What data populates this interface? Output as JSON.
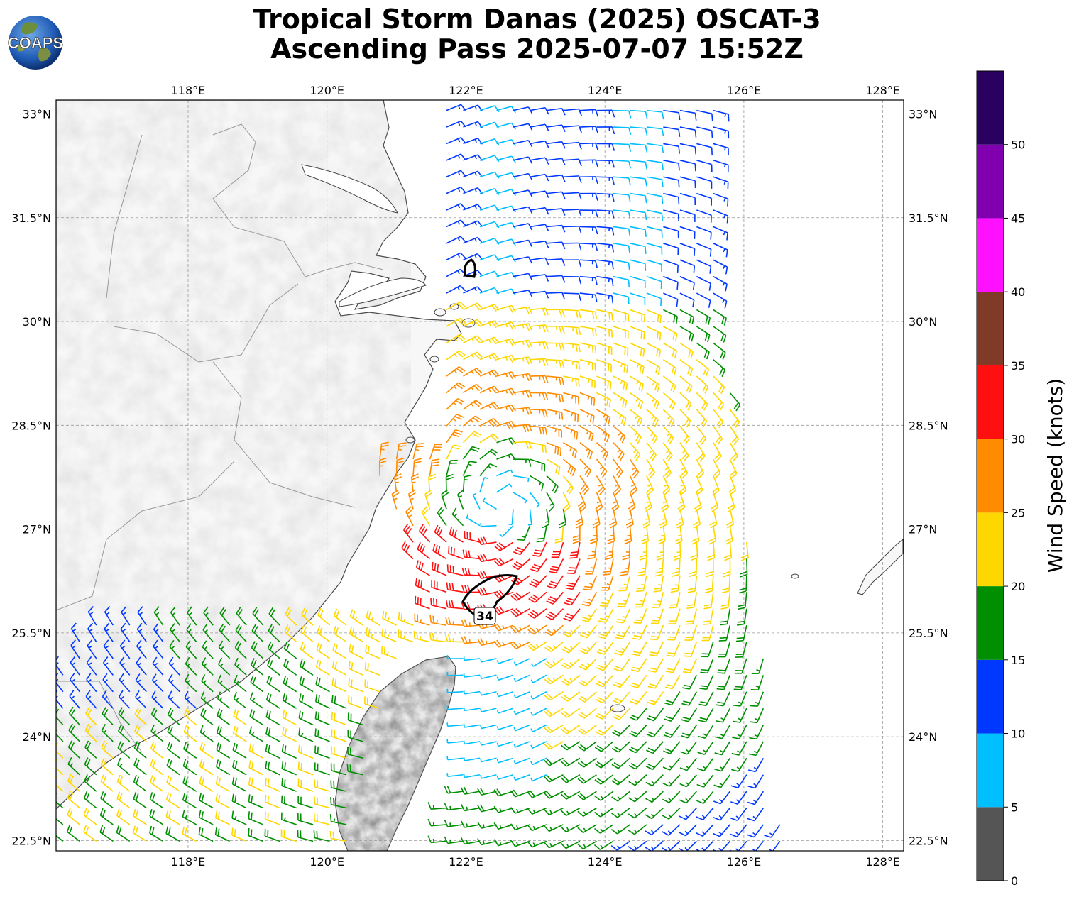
{
  "title": {
    "line1": "Tropical Storm Danas (2025) OSCAT-3",
    "line2": "Ascending Pass 2025-07-07 15:52Z"
  },
  "logo": {
    "text": "COAPS",
    "icon": "globe-logo-icon"
  },
  "map": {
    "lon_range": [
      116.1,
      128.3
    ],
    "lat_range": [
      22.35,
      33.2
    ],
    "lon_ticks": [
      {
        "value": 118,
        "label": "118°E"
      },
      {
        "value": 120,
        "label": "120°E"
      },
      {
        "value": 122,
        "label": "122°E"
      },
      {
        "value": 124,
        "label": "124°E"
      },
      {
        "value": 126,
        "label": "126°E"
      },
      {
        "value": 128,
        "label": "128°E"
      }
    ],
    "lat_ticks": [
      {
        "value": 33,
        "label": "33°N"
      },
      {
        "value": 31.5,
        "label": "31.5°N"
      },
      {
        "value": 30,
        "label": "30°N"
      },
      {
        "value": 28.5,
        "label": "28.5°N"
      },
      {
        "value": 27,
        "label": "27°N"
      },
      {
        "value": 25.5,
        "label": "25.5°N"
      },
      {
        "value": 24,
        "label": "24°N"
      },
      {
        "value": 22.5,
        "label": "22.5°N"
      }
    ],
    "gridlines": true,
    "storm_center": {
      "lon": 122.5,
      "lat": 27.35
    },
    "contour_label": "34"
  },
  "colorbar": {
    "label": "Wind Speed (knots)",
    "tick_values": [
      0,
      5,
      10,
      15,
      20,
      25,
      30,
      35,
      40,
      45,
      50
    ],
    "bins": [
      {
        "min": 0,
        "max": 5,
        "color": "#555555"
      },
      {
        "min": 5,
        "max": 10,
        "color": "#00bfff"
      },
      {
        "min": 10,
        "max": 15,
        "color": "#0038ff"
      },
      {
        "min": 15,
        "max": 20,
        "color": "#008f00"
      },
      {
        "min": 20,
        "max": 25,
        "color": "#ffd700"
      },
      {
        "min": 25,
        "max": 30,
        "color": "#ff8c00"
      },
      {
        "min": 30,
        "max": 35,
        "color": "#ff1010"
      },
      {
        "min": 35,
        "max": 40,
        "color": "#7f3a28"
      },
      {
        "min": 40,
        "max": 45,
        "color": "#ff10ff"
      },
      {
        "min": 45,
        "max": 50,
        "color": "#8000b0"
      },
      {
        "min": 50,
        "max": 55,
        "color": "#2a0060"
      }
    ]
  }
}
